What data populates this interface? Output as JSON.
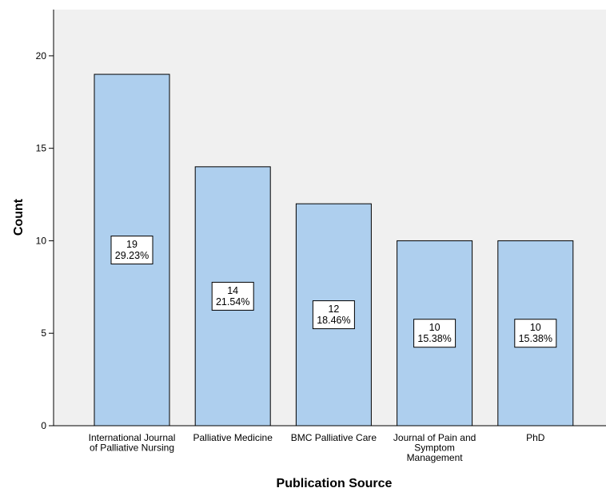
{
  "chart_data": {
    "type": "bar",
    "categories": [
      "International Journal of Palliative Nursing",
      "Palliative Medicine",
      "BMC Palliative Care",
      "Journal of Pain and Symptom Management",
      "PhD"
    ],
    "category_lines": [
      [
        "International Journal",
        "of Palliative Nursing"
      ],
      [
        "Palliative Medicine"
      ],
      [
        "BMC Palliative Care"
      ],
      [
        "Journal of Pain and",
        "Symptom",
        "Management"
      ],
      [
        "PhD"
      ]
    ],
    "values": [
      19,
      14,
      12,
      10,
      10
    ],
    "percent_labels": [
      "29.23%",
      "21.54%",
      "18.46%",
      "15.38%",
      "15.38%"
    ],
    "title": "",
    "xlabel": "Publication Source",
    "ylabel": "Count",
    "ylim": [
      0,
      22.5
    ],
    "yticks": [
      0,
      5,
      10,
      15,
      20
    ],
    "grid": false,
    "colors": {
      "bar_fill": "#aecfee",
      "bar_stroke": "#000000",
      "plot_background": "#f0f0f0",
      "label_box_fill": "#ffffff"
    }
  }
}
